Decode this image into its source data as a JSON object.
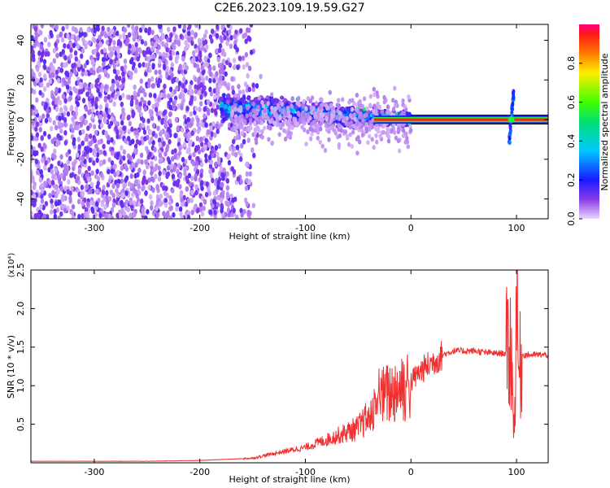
{
  "title": "C2E6.2023.109.19.59.G27",
  "chart_data": [
    {
      "type": "heatmap",
      "xlabel": "Height of straight line (km)",
      "ylabel": "Frequency (Hz)",
      "xlim": [
        -360,
        130
      ],
      "ylim": [
        -50,
        48
      ],
      "x_ticks": [
        "-300",
        "-200",
        "-100",
        "0",
        "100"
      ],
      "x_tick_values": [
        -300,
        -200,
        -100,
        0,
        100
      ],
      "y_ticks": [
        "-40",
        "-20",
        "0",
        "20",
        "40"
      ],
      "y_tick_values": [
        -40,
        -20,
        0,
        20,
        40
      ],
      "colorbar": {
        "label": "Normalized spectral amplitude",
        "range": [
          0,
          1
        ],
        "ticks": [
          "0.0",
          "0.2",
          "0.4",
          "0.6",
          "0.8"
        ],
        "tick_values": [
          0,
          0.2,
          0.4,
          0.6,
          0.8
        ]
      },
      "features": [
        {
          "name": "noise",
          "x_range": [
            -360,
            -180
          ],
          "y_range": [
            -50,
            48
          ],
          "amplitude": 0.15
        },
        {
          "name": "echo-band",
          "x_range": [
            -180,
            0
          ],
          "y_center": [
            6,
            0
          ],
          "amplitude": 0.35
        },
        {
          "name": "carrier-line",
          "x_range": [
            -35,
            130
          ],
          "y": 0,
          "amplitude": 0.8
        },
        {
          "name": "spike",
          "x": 95,
          "y_range": [
            -12,
            15
          ],
          "amplitude": 0.4
        }
      ],
      "colors": {
        "noise": "#7a35e0",
        "line_red": "#ff2020",
        "line_green": "#30e030"
      }
    },
    {
      "type": "line",
      "xlabel": "Height of straight line (km)",
      "ylabel": "SNR (10 * v/v)",
      "multiplier": "(x10⁴)",
      "xlim": [
        -360,
        130
      ],
      "ylim": [
        0,
        2.5
      ],
      "x_ticks": [
        "-300",
        "-200",
        "-100",
        "0",
        "100"
      ],
      "x_tick_values": [
        -300,
        -200,
        -100,
        0,
        100
      ],
      "y_ticks": [
        "0.5",
        "1.0",
        "1.5",
        "2.0",
        "2.5"
      ],
      "y_tick_values": [
        0.5,
        1.0,
        1.5,
        2.0,
        2.5
      ],
      "color": "#f03030",
      "x": [
        -360,
        -300,
        -250,
        -200,
        -150,
        -130,
        -100,
        -80,
        -60,
        -50,
        -40,
        -30,
        -20,
        -10,
        0,
        10,
        20,
        30,
        40,
        50,
        60,
        70,
        80,
        90,
        95,
        98,
        100,
        102,
        105,
        110,
        120,
        130
      ],
      "y": [
        0.02,
        0.02,
        0.02,
        0.03,
        0.06,
        0.12,
        0.2,
        0.3,
        0.4,
        0.45,
        0.6,
        0.85,
        0.9,
        1.0,
        1.05,
        1.2,
        1.3,
        1.4,
        1.45,
        1.45,
        1.45,
        1.43,
        1.42,
        1.42,
        1.5,
        0.3,
        2.4,
        1.1,
        1.4,
        1.4,
        1.4,
        1.4
      ]
    }
  ]
}
